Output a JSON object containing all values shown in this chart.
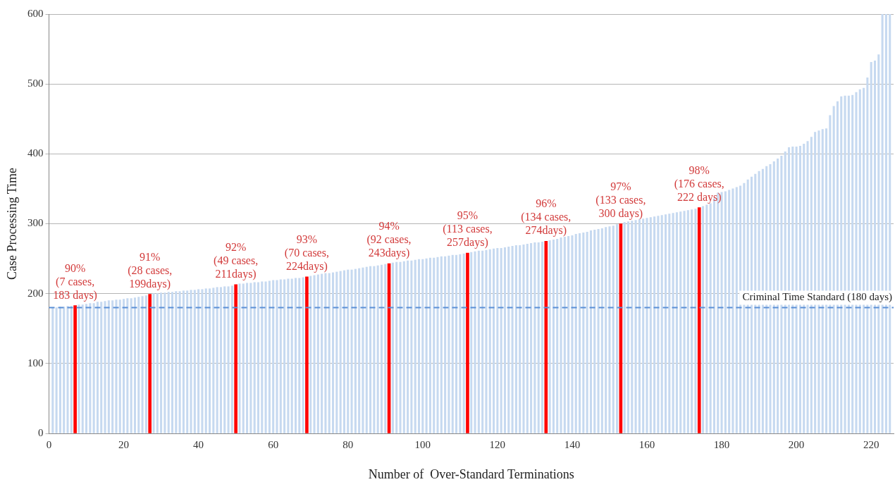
{
  "chart_data": {
    "type": "bar",
    "xlabel": "Number of  Over-Standard Terminations",
    "ylabel": "Case Processing Time",
    "x": [
      1,
      2,
      3,
      4,
      5,
      6,
      7,
      8,
      9,
      10,
      11,
      12,
      13,
      14,
      15,
      16,
      17,
      18,
      19,
      20,
      21,
      22,
      23,
      24,
      25,
      26,
      27,
      28,
      29,
      30,
      31,
      32,
      33,
      34,
      35,
      36,
      37,
      38,
      39,
      40,
      41,
      42,
      43,
      44,
      45,
      46,
      47,
      48,
      49,
      50,
      51,
      52,
      53,
      54,
      55,
      56,
      57,
      58,
      59,
      60,
      61,
      62,
      63,
      64,
      65,
      66,
      67,
      68,
      69,
      70,
      71,
      72,
      73,
      74,
      75,
      76,
      77,
      78,
      79,
      80,
      81,
      82,
      83,
      84,
      85,
      86,
      87,
      88,
      89,
      90,
      91,
      92,
      93,
      94,
      95,
      96,
      97,
      98,
      99,
      100,
      101,
      102,
      103,
      104,
      105,
      106,
      107,
      108,
      109,
      110,
      111,
      112,
      113,
      114,
      115,
      116,
      117,
      118,
      119,
      120,
      121,
      122,
      123,
      124,
      125,
      126,
      127,
      128,
      129,
      130,
      131,
      132,
      133,
      134,
      135,
      136,
      137,
      138,
      139,
      140,
      141,
      142,
      143,
      144,
      145,
      146,
      147,
      148,
      149,
      150,
      151,
      152,
      153,
      154,
      155,
      156,
      157,
      158,
      159,
      160,
      161,
      162,
      163,
      164,
      165,
      166,
      167,
      168,
      169,
      170,
      171,
      172,
      173,
      174,
      175,
      176,
      177,
      178,
      179,
      180,
      181,
      182,
      183,
      184,
      185,
      186,
      187,
      188,
      189,
      190,
      191,
      192,
      193,
      194,
      195,
      196,
      197,
      198,
      199,
      200,
      201,
      202,
      203,
      204,
      205,
      206,
      207,
      208,
      209,
      210,
      211,
      212,
      213,
      214,
      215,
      216,
      217,
      218,
      219,
      220,
      221,
      222,
      223,
      224,
      225
    ],
    "series": [
      {
        "color": "#c6d9f0",
        "values": [
          180,
          180,
          181,
          181,
          182,
          182,
          null,
          184,
          184,
          185,
          186,
          186,
          188,
          188,
          189,
          190,
          190,
          191,
          191,
          192,
          193,
          193,
          194,
          195,
          196,
          197,
          null,
          200,
          200,
          201,
          201,
          202,
          202,
          203,
          203,
          204,
          204,
          205,
          205,
          206,
          206,
          207,
          207,
          208,
          209,
          209,
          210,
          210,
          211,
          null,
          214,
          214,
          215,
          215,
          216,
          216,
          217,
          217,
          218,
          219,
          219,
          220,
          220,
          221,
          221,
          222,
          222,
          223,
          null,
          225,
          226,
          227,
          228,
          229,
          229,
          230,
          231,
          232,
          233,
          234,
          234,
          235,
          236,
          237,
          238,
          239,
          239,
          240,
          241,
          242,
          null,
          244,
          245,
          245,
          246,
          247,
          247,
          248,
          249,
          249,
          250,
          251,
          251,
          252,
          253,
          253,
          254,
          255,
          255,
          256,
          257,
          null,
          259,
          260,
          261,
          261,
          262,
          263,
          264,
          265,
          265,
          266,
          267,
          268,
          269,
          269,
          270,
          271,
          272,
          273,
          273,
          274,
          null,
          276,
          277,
          278,
          280,
          281,
          282,
          283,
          285,
          286,
          287,
          288,
          290,
          291,
          292,
          293,
          295,
          296,
          297,
          299,
          null,
          302,
          303,
          304,
          305,
          306,
          307,
          308,
          309,
          310,
          311,
          312,
          313,
          314,
          315,
          316,
          317,
          318,
          319,
          320,
          321,
          null,
          325,
          327,
          329,
          336,
          344,
          345,
          346,
          348,
          350,
          352,
          354,
          358,
          363,
          367,
          371,
          375,
          378,
          382,
          385,
          389,
          393,
          397,
          403,
          409,
          410,
          410,
          411,
          414,
          418,
          424,
          431,
          433,
          435,
          436,
          455,
          468,
          475,
          482,
          483,
          483,
          484,
          488,
          492,
          494,
          509,
          531,
          533,
          542,
          600,
          600,
          600
        ]
      },
      {
        "color": "#ff0000",
        "x": [
          7,
          27,
          50,
          69,
          91,
          112,
          133,
          153,
          174
        ],
        "values": [
          183,
          199,
          213,
          224,
          243,
          258,
          275,
          300,
          323
        ]
      }
    ],
    "xlim": [
      0,
      226
    ],
    "xticks": [
      0,
      20,
      40,
      60,
      80,
      100,
      120,
      140,
      160,
      180,
      200,
      220
    ],
    "ylim": [
      0,
      600
    ],
    "yticks": [
      0,
      100,
      200,
      300,
      400,
      500,
      600
    ],
    "grid": "y",
    "legend": false,
    "ref_lines": [
      {
        "axis": "y",
        "value": 180,
        "label": "Criminal Time Standard (180 days)",
        "color": "#5b8fd6",
        "line_style": "dashed"
      }
    ],
    "annotations": [
      {
        "text": "90%\n(7 cases,\n183 days)",
        "x": 7,
        "y": 183
      },
      {
        "text": "91%\n(28 cases,\n199days)",
        "x": 27,
        "y": 199
      },
      {
        "text": "92%\n(49 cases,\n211days)",
        "x": 50,
        "y": 213
      },
      {
        "text": "93%\n(70 cases,\n224days)",
        "x": 69,
        "y": 224
      },
      {
        "text": "94%\n(92 cases,\n243days)",
        "x": 91,
        "y": 243
      },
      {
        "text": "95%\n(113 cases,\n257days)",
        "x": 112,
        "y": 258
      },
      {
        "text": "96%\n(134 cases,\n274days)",
        "x": 133,
        "y": 275
      },
      {
        "text": "97%\n(133 cases,\n300 days)",
        "x": 153,
        "y": 300
      },
      {
        "text": "98%\n(176 cases,\n222 days)",
        "x": 174,
        "y": 323
      }
    ]
  }
}
